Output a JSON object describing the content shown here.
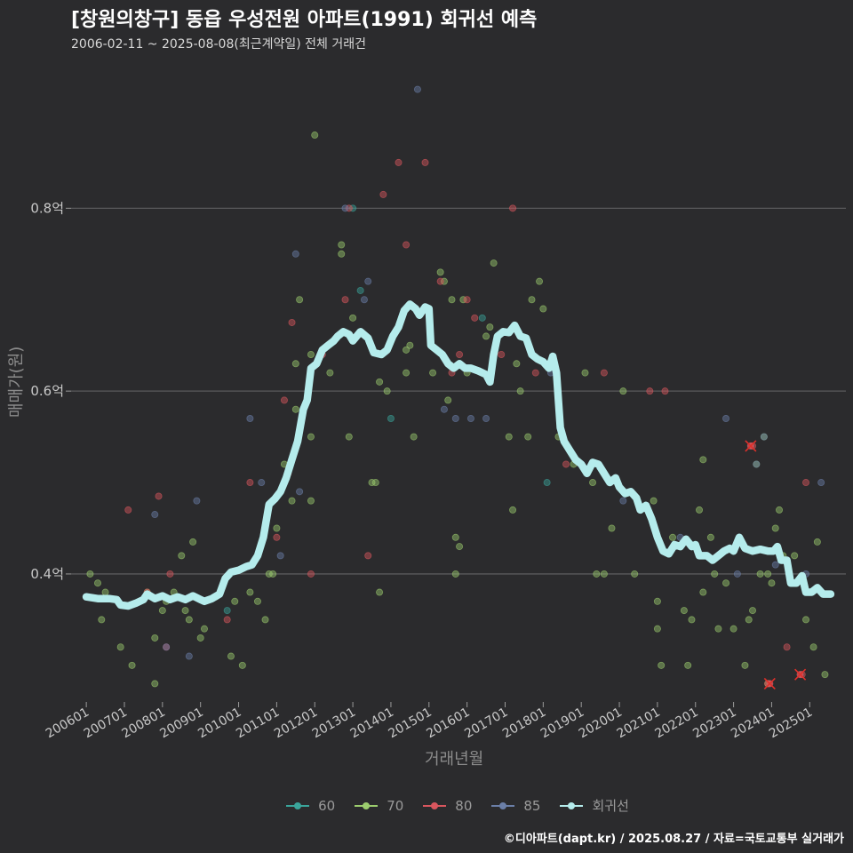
{
  "title": "[창원의창구] 동읍 우성전원 아파트(1991) 회귀선 예측",
  "subtitle": "2006-02-11 ~ 2025-08-08(최근계약일) 전체 거래건",
  "caption": "©디아파트(dapt.kr) / 2025.08.27 / 자료=국토교통부 실거래가",
  "colors": {
    "background": "#2b2b2d",
    "grid": "#5a5a5c",
    "s60": "#3aa59b",
    "s70": "#9ccd6e",
    "s80": "#d9565e",
    "s85": "#6b7fa8",
    "regression": "#b5ecec"
  },
  "chart_data": {
    "type": "scatter",
    "title": "[창원의창구] 동읍 우성전원 아파트(1991) 회귀선 예측",
    "xlabel": "거래년월",
    "ylabel": "매매가(원)",
    "x_ticks": [
      "200601",
      "200701",
      "200801",
      "200901",
      "201001",
      "201101",
      "201201",
      "201301",
      "201401",
      "201501",
      "201601",
      "201701",
      "201801",
      "201901",
      "202001",
      "202101",
      "202201",
      "202301",
      "202401",
      "202501"
    ],
    "y_ticks": [
      {
        "v": 0.4,
        "label": "0.4억"
      },
      {
        "v": 0.6,
        "label": "0.6억"
      },
      {
        "v": 0.8,
        "label": "0.8억"
      }
    ],
    "ylim": [
      0.26,
      0.95
    ],
    "xlim": [
      2005.6,
      2025.95
    ],
    "grid": true,
    "legend_position": "bottom",
    "series": [
      {
        "name": "60",
        "points": [
          [
            2013.0,
            0.8
          ],
          [
            2013.2,
            0.71
          ],
          [
            2014.0,
            0.57
          ],
          [
            2018.1,
            0.5
          ],
          [
            2009.7,
            0.36
          ],
          [
            2016.4,
            0.68
          ]
        ]
      },
      {
        "name": "70",
        "points": [
          [
            2006.1,
            0.4
          ],
          [
            2006.3,
            0.39
          ],
          [
            2006.4,
            0.35
          ],
          [
            2006.5,
            0.38
          ],
          [
            2006.9,
            0.32
          ],
          [
            2007.2,
            0.3
          ],
          [
            2007.6,
            0.38
          ],
          [
            2007.8,
            0.28
          ],
          [
            2007.8,
            0.33
          ],
          [
            2008.0,
            0.36
          ],
          [
            2008.1,
            0.37
          ],
          [
            2008.3,
            0.38
          ],
          [
            2008.5,
            0.42
          ],
          [
            2008.6,
            0.36
          ],
          [
            2008.7,
            0.35
          ],
          [
            2008.8,
            0.435
          ],
          [
            2009.0,
            0.33
          ],
          [
            2009.1,
            0.34
          ],
          [
            2009.4,
            0.375
          ],
          [
            2009.8,
            0.31
          ],
          [
            2009.9,
            0.37
          ],
          [
            2010.1,
            0.3
          ],
          [
            2010.3,
            0.38
          ],
          [
            2010.5,
            0.37
          ],
          [
            2010.7,
            0.35
          ],
          [
            2010.8,
            0.4
          ],
          [
            2010.9,
            0.4
          ],
          [
            2011.0,
            0.45
          ],
          [
            2011.2,
            0.52
          ],
          [
            2011.4,
            0.48
          ],
          [
            2011.5,
            0.58
          ],
          [
            2011.5,
            0.63
          ],
          [
            2011.6,
            0.7
          ],
          [
            2011.9,
            0.48
          ],
          [
            2011.9,
            0.55
          ],
          [
            2011.9,
            0.64
          ],
          [
            2012.0,
            0.88
          ],
          [
            2012.4,
            0.62
          ],
          [
            2012.7,
            0.76
          ],
          [
            2012.7,
            0.75
          ],
          [
            2012.9,
            0.55
          ],
          [
            2013.0,
            0.68
          ],
          [
            2013.1,
            0.66
          ],
          [
            2013.5,
            0.5
          ],
          [
            2013.6,
            0.5
          ],
          [
            2013.7,
            0.38
          ],
          [
            2013.7,
            0.61
          ],
          [
            2013.9,
            0.6
          ],
          [
            2014.4,
            0.645
          ],
          [
            2014.4,
            0.62
          ],
          [
            2014.5,
            0.65
          ],
          [
            2014.6,
            0.55
          ],
          [
            2015.1,
            0.62
          ],
          [
            2015.3,
            0.73
          ],
          [
            2015.4,
            0.72
          ],
          [
            2015.5,
            0.59
          ],
          [
            2015.6,
            0.7
          ],
          [
            2015.7,
            0.4
          ],
          [
            2015.7,
            0.44
          ],
          [
            2015.8,
            0.43
          ],
          [
            2015.9,
            0.7
          ],
          [
            2016.0,
            0.62
          ],
          [
            2016.5,
            0.66
          ],
          [
            2016.6,
            0.67
          ],
          [
            2016.7,
            0.74
          ],
          [
            2017.1,
            0.55
          ],
          [
            2017.2,
            0.47
          ],
          [
            2017.3,
            0.63
          ],
          [
            2017.4,
            0.6
          ],
          [
            2017.6,
            0.55
          ],
          [
            2017.7,
            0.7
          ],
          [
            2017.9,
            0.72
          ],
          [
            2018.0,
            0.69
          ],
          [
            2018.4,
            0.55
          ],
          [
            2018.8,
            0.52
          ],
          [
            2019.1,
            0.62
          ],
          [
            2019.3,
            0.5
          ],
          [
            2019.4,
            0.4
          ],
          [
            2019.6,
            0.4
          ],
          [
            2019.8,
            0.45
          ],
          [
            2020.1,
            0.6
          ],
          [
            2020.4,
            0.4
          ],
          [
            2020.9,
            0.48
          ],
          [
            2021.0,
            0.37
          ],
          [
            2021.0,
            0.34
          ],
          [
            2021.1,
            0.3
          ],
          [
            2021.4,
            0.44
          ],
          [
            2021.7,
            0.36
          ],
          [
            2021.8,
            0.3
          ],
          [
            2021.9,
            0.35
          ],
          [
            2022.1,
            0.47
          ],
          [
            2022.2,
            0.38
          ],
          [
            2022.2,
            0.525
          ],
          [
            2022.4,
            0.44
          ],
          [
            2022.5,
            0.4
          ],
          [
            2022.6,
            0.34
          ],
          [
            2022.8,
            0.39
          ],
          [
            2023.0,
            0.34
          ],
          [
            2023.3,
            0.3
          ],
          [
            2023.4,
            0.35
          ],
          [
            2023.5,
            0.36
          ],
          [
            2023.6,
            0.52
          ],
          [
            2023.7,
            0.4
          ],
          [
            2023.8,
            0.55
          ],
          [
            2023.9,
            0.4
          ],
          [
            2023.9,
            0.28
          ],
          [
            2024.0,
            0.39
          ],
          [
            2024.1,
            0.45
          ],
          [
            2024.2,
            0.47
          ],
          [
            2024.3,
            0.42
          ],
          [
            2024.6,
            0.42
          ],
          [
            2024.9,
            0.35
          ],
          [
            2025.1,
            0.32
          ],
          [
            2025.2,
            0.435
          ],
          [
            2025.4,
            0.29
          ]
        ]
      },
      {
        "name": "80",
        "points": [
          [
            2007.1,
            0.47
          ],
          [
            2007.6,
            0.38
          ],
          [
            2007.9,
            0.485
          ],
          [
            2008.1,
            0.32
          ],
          [
            2008.2,
            0.4
          ],
          [
            2009.7,
            0.35
          ],
          [
            2010.3,
            0.5
          ],
          [
            2011.0,
            0.44
          ],
          [
            2011.2,
            0.59
          ],
          [
            2011.3,
            0.51
          ],
          [
            2011.4,
            0.675
          ],
          [
            2011.9,
            0.4
          ],
          [
            2012.2,
            0.64
          ],
          [
            2012.8,
            0.7
          ],
          [
            2012.9,
            0.8
          ],
          [
            2013.4,
            0.42
          ],
          [
            2013.8,
            0.815
          ],
          [
            2014.2,
            0.85
          ],
          [
            2014.4,
            0.76
          ],
          [
            2014.9,
            0.85
          ],
          [
            2015.3,
            0.72
          ],
          [
            2015.6,
            0.62
          ],
          [
            2015.8,
            0.64
          ],
          [
            2016.0,
            0.7
          ],
          [
            2016.2,
            0.68
          ],
          [
            2016.9,
            0.64
          ],
          [
            2017.2,
            0.8
          ],
          [
            2017.8,
            0.62
          ],
          [
            2018.6,
            0.52
          ],
          [
            2019.6,
            0.62
          ],
          [
            2020.8,
            0.6
          ],
          [
            2021.2,
            0.6
          ],
          [
            2023.5,
            0.54
          ],
          [
            2023.9,
            0.28
          ],
          [
            2024.4,
            0.32
          ],
          [
            2024.8,
            0.29
          ],
          [
            2024.9,
            0.5
          ]
        ]
      },
      {
        "name": "85",
        "points": [
          [
            2007.8,
            0.465
          ],
          [
            2008.1,
            0.32
          ],
          [
            2008.7,
            0.31
          ],
          [
            2008.9,
            0.48
          ],
          [
            2010.3,
            0.57
          ],
          [
            2010.6,
            0.5
          ],
          [
            2011.1,
            0.42
          ],
          [
            2011.5,
            0.75
          ],
          [
            2011.6,
            0.49
          ],
          [
            2012.8,
            0.8
          ],
          [
            2013.3,
            0.7
          ],
          [
            2013.4,
            0.72
          ],
          [
            2014.7,
            0.93
          ],
          [
            2015.4,
            0.58
          ],
          [
            2015.7,
            0.57
          ],
          [
            2016.1,
            0.57
          ],
          [
            2016.5,
            0.57
          ],
          [
            2018.2,
            0.62
          ],
          [
            2020.1,
            0.48
          ],
          [
            2021.6,
            0.44
          ],
          [
            2022.8,
            0.57
          ],
          [
            2023.1,
            0.4
          ],
          [
            2023.6,
            0.52
          ],
          [
            2023.8,
            0.55
          ],
          [
            2024.1,
            0.41
          ],
          [
            2024.9,
            0.4
          ],
          [
            2025.3,
            0.5
          ]
        ]
      }
    ],
    "highlighted": [
      [
        2023.45,
        0.54
      ],
      [
        2023.95,
        0.28
      ],
      [
        2024.75,
        0.29
      ]
    ],
    "regression": [
      [
        2006.0,
        0.375
      ],
      [
        2006.3,
        0.373
      ],
      [
        2006.6,
        0.373
      ],
      [
        2006.8,
        0.372
      ],
      [
        2006.9,
        0.366
      ],
      [
        2007.1,
        0.365
      ],
      [
        2007.3,
        0.368
      ],
      [
        2007.5,
        0.372
      ],
      [
        2007.6,
        0.378
      ],
      [
        2007.8,
        0.373
      ],
      [
        2008.0,
        0.376
      ],
      [
        2008.2,
        0.372
      ],
      [
        2008.4,
        0.375
      ],
      [
        2008.6,
        0.372
      ],
      [
        2008.8,
        0.376
      ],
      [
        2009.0,
        0.372
      ],
      [
        2009.1,
        0.37
      ],
      [
        2009.3,
        0.373
      ],
      [
        2009.5,
        0.378
      ],
      [
        2009.65,
        0.395
      ],
      [
        2009.8,
        0.402
      ],
      [
        2010.0,
        0.404
      ],
      [
        2010.2,
        0.408
      ],
      [
        2010.35,
        0.41
      ],
      [
        2010.5,
        0.42
      ],
      [
        2010.65,
        0.44
      ],
      [
        2010.8,
        0.476
      ],
      [
        2010.95,
        0.482
      ],
      [
        2011.1,
        0.49
      ],
      [
        2011.25,
        0.505
      ],
      [
        2011.4,
        0.525
      ],
      [
        2011.55,
        0.545
      ],
      [
        2011.7,
        0.58
      ],
      [
        2011.8,
        0.59
      ],
      [
        2011.9,
        0.625
      ],
      [
        2012.05,
        0.63
      ],
      [
        2012.2,
        0.645
      ],
      [
        2012.35,
        0.65
      ],
      [
        2012.5,
        0.655
      ],
      [
        2012.6,
        0.66
      ],
      [
        2012.75,
        0.665
      ],
      [
        2012.9,
        0.662
      ],
      [
        2013.0,
        0.655
      ],
      [
        2013.1,
        0.66
      ],
      [
        2013.2,
        0.665
      ],
      [
        2013.4,
        0.658
      ],
      [
        2013.55,
        0.642
      ],
      [
        2013.75,
        0.64
      ],
      [
        2013.9,
        0.645
      ],
      [
        2014.05,
        0.66
      ],
      [
        2014.2,
        0.67
      ],
      [
        2014.35,
        0.688
      ],
      [
        2014.5,
        0.695
      ],
      [
        2014.65,
        0.69
      ],
      [
        2014.75,
        0.683
      ],
      [
        2014.9,
        0.692
      ],
      [
        2015.0,
        0.69
      ],
      [
        2015.05,
        0.65
      ],
      [
        2015.2,
        0.645
      ],
      [
        2015.35,
        0.64
      ],
      [
        2015.5,
        0.63
      ],
      [
        2015.65,
        0.625
      ],
      [
        2015.8,
        0.63
      ],
      [
        2015.95,
        0.625
      ],
      [
        2016.1,
        0.625
      ],
      [
        2016.3,
        0.622
      ],
      [
        2016.5,
        0.618
      ],
      [
        2016.6,
        0.61
      ],
      [
        2016.7,
        0.64
      ],
      [
        2016.8,
        0.66
      ],
      [
        2016.95,
        0.665
      ],
      [
        2017.1,
        0.664
      ],
      [
        2017.25,
        0.672
      ],
      [
        2017.4,
        0.66
      ],
      [
        2017.55,
        0.658
      ],
      [
        2017.7,
        0.64
      ],
      [
        2017.85,
        0.635
      ],
      [
        2018.0,
        0.632
      ],
      [
        2018.15,
        0.625
      ],
      [
        2018.25,
        0.638
      ],
      [
        2018.35,
        0.62
      ],
      [
        2018.45,
        0.56
      ],
      [
        2018.55,
        0.545
      ],
      [
        2018.7,
        0.535
      ],
      [
        2018.85,
        0.525
      ],
      [
        2019.0,
        0.52
      ],
      [
        2019.15,
        0.51
      ],
      [
        2019.3,
        0.522
      ],
      [
        2019.45,
        0.52
      ],
      [
        2019.6,
        0.51
      ],
      [
        2019.75,
        0.5
      ],
      [
        2019.9,
        0.505
      ],
      [
        2020.0,
        0.495
      ],
      [
        2020.15,
        0.488
      ],
      [
        2020.3,
        0.49
      ],
      [
        2020.45,
        0.483
      ],
      [
        2020.55,
        0.47
      ],
      [
        2020.7,
        0.475
      ],
      [
        2020.85,
        0.46
      ],
      [
        2021.0,
        0.44
      ],
      [
        2021.15,
        0.425
      ],
      [
        2021.3,
        0.422
      ],
      [
        2021.45,
        0.432
      ],
      [
        2021.6,
        0.43
      ],
      [
        2021.75,
        0.438
      ],
      [
        2021.9,
        0.43
      ],
      [
        2022.0,
        0.432
      ],
      [
        2022.1,
        0.42
      ],
      [
        2022.3,
        0.42
      ],
      [
        2022.45,
        0.415
      ],
      [
        2022.6,
        0.42
      ],
      [
        2022.75,
        0.425
      ],
      [
        2022.9,
        0.428
      ],
      [
        2023.0,
        0.425
      ],
      [
        2023.15,
        0.44
      ],
      [
        2023.3,
        0.428
      ],
      [
        2023.5,
        0.425
      ],
      [
        2023.7,
        0.427
      ],
      [
        2023.9,
        0.425
      ],
      [
        2024.05,
        0.425
      ],
      [
        2024.15,
        0.43
      ],
      [
        2024.25,
        0.415
      ],
      [
        2024.4,
        0.415
      ],
      [
        2024.5,
        0.39
      ],
      [
        2024.65,
        0.39
      ],
      [
        2024.8,
        0.398
      ],
      [
        2024.9,
        0.38
      ],
      [
        2025.05,
        0.38
      ],
      [
        2025.2,
        0.385
      ],
      [
        2025.35,
        0.378
      ],
      [
        2025.55,
        0.378
      ]
    ]
  }
}
